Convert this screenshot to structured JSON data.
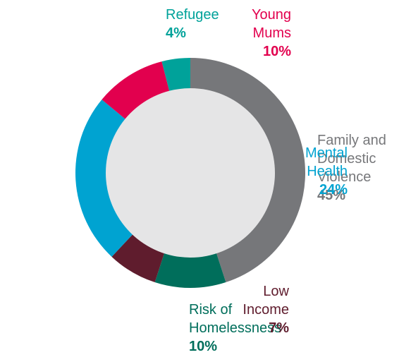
{
  "chart_data": {
    "type": "pie",
    "variant": "donut",
    "start_angle_deg": 0,
    "direction": "clockwise",
    "center_color": "#e5e5e6",
    "legend": "none",
    "slices": [
      {
        "label_lines": [
          "Family and",
          "Domestic",
          "Violence"
        ],
        "value": 45,
        "value_label": "45%",
        "color": "#76777a"
      },
      {
        "label_lines": [
          "Risk of",
          "Homelessness"
        ],
        "value": 10,
        "value_label": "10%",
        "color": "#006e5b"
      },
      {
        "label_lines": [
          "Low",
          "Income"
        ],
        "value": 7,
        "value_label": "7%",
        "color": "#5f1c2d"
      },
      {
        "label_lines": [
          "Mental",
          "Health"
        ],
        "value": 24,
        "value_label": "24%",
        "color": "#00a3d1"
      },
      {
        "label_lines": [
          "Young",
          "Mums"
        ],
        "value": 10,
        "value_label": "10%",
        "color": "#e2004e"
      },
      {
        "label_lines": [
          "Refugee"
        ],
        "value": 4,
        "value_label": "4%",
        "color": "#00a29a"
      }
    ]
  }
}
